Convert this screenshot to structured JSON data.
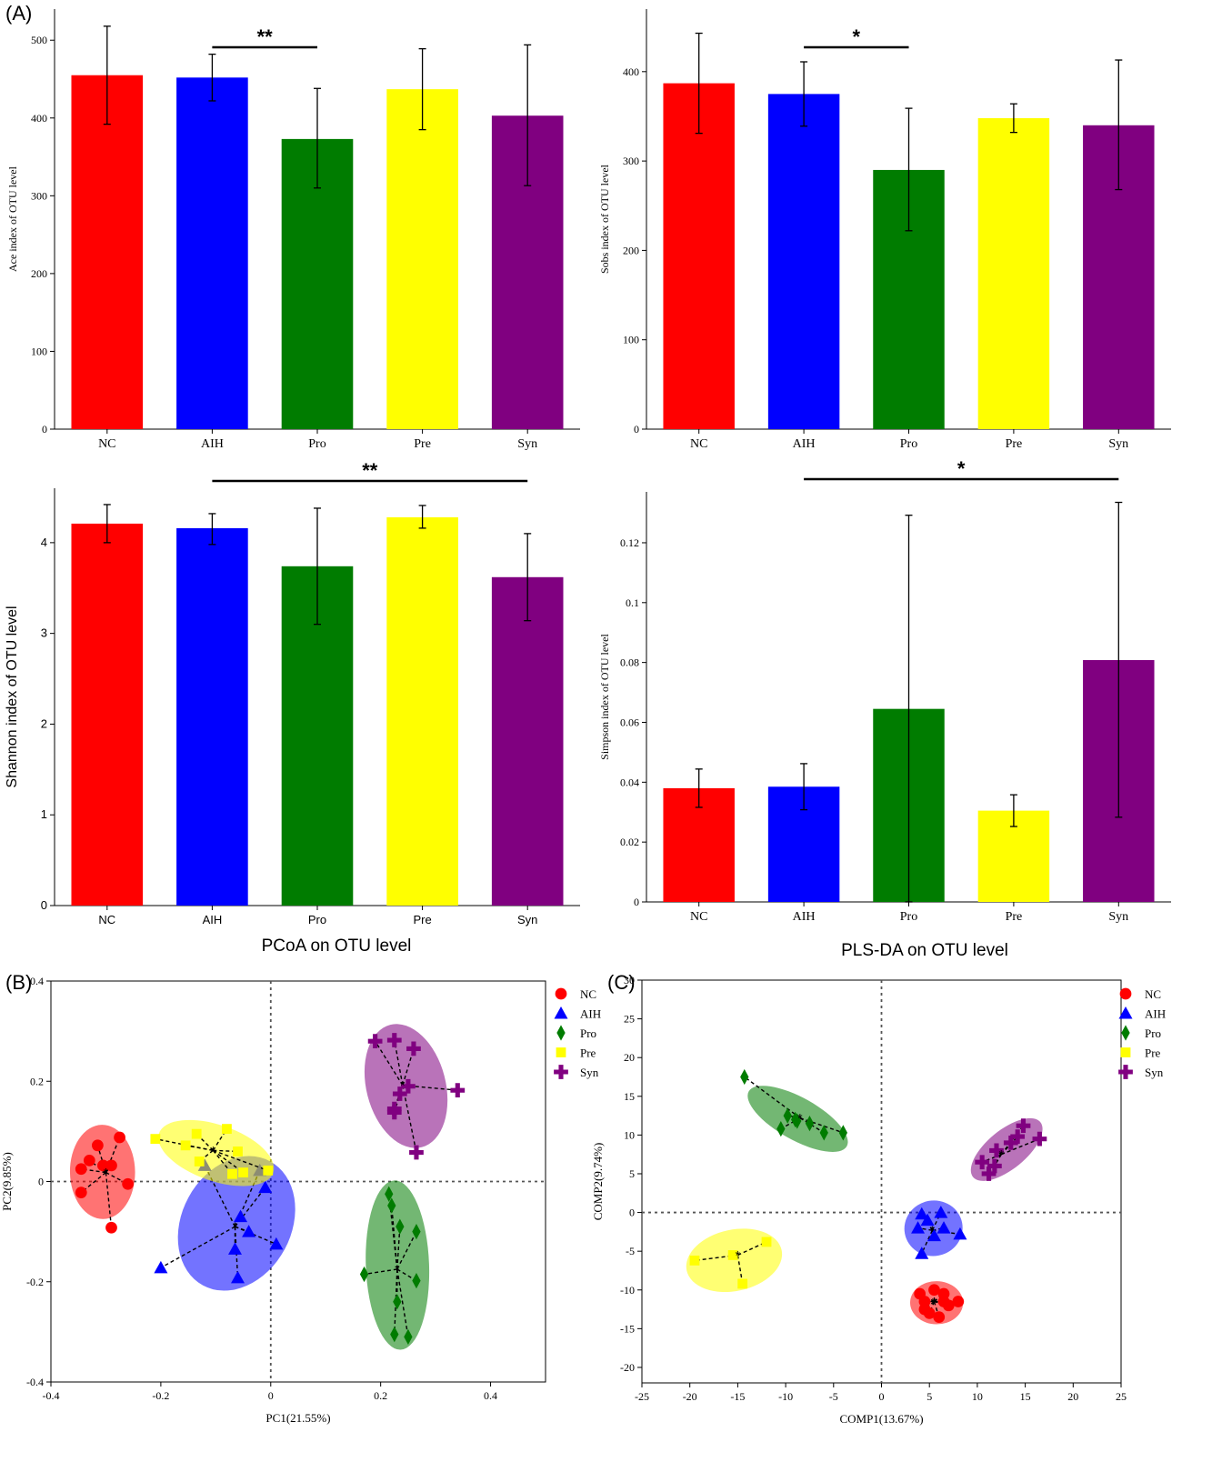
{
  "panel_labels": {
    "a": "(A)",
    "b": "(B)",
    "c": "(C)"
  },
  "group_colors": {
    "NC": "#ff0000",
    "AIH": "#0000ff",
    "Pro": "#007c00",
    "Pre": "#ffff00",
    "Syn": "#800080"
  },
  "chart_data": [
    {
      "id": "ace",
      "type": "bar",
      "categories": [
        "NC",
        "AIH",
        "Pro",
        "Pre",
        "Syn"
      ],
      "values": [
        455,
        452,
        373,
        437,
        403
      ],
      "err_low": [
        392,
        422,
        310,
        385,
        313
      ],
      "err_high": [
        518,
        482,
        438,
        489,
        494
      ],
      "ylabel": "Ace index of OTU level",
      "ylim": [
        0,
        540
      ],
      "yticks": [
        0,
        100,
        200,
        300,
        400,
        500
      ],
      "significance": {
        "from": "AIH",
        "to": "Pro",
        "label": "**"
      }
    },
    {
      "id": "sobs",
      "type": "bar",
      "categories": [
        "NC",
        "AIH",
        "Pro",
        "Pre",
        "Syn"
      ],
      "values": [
        387,
        375,
        290,
        348,
        340
      ],
      "err_low": [
        331,
        339,
        222,
        332,
        268
      ],
      "err_high": [
        443,
        411,
        359,
        364,
        413
      ],
      "ylabel": "Sobs index of OTU level",
      "ylim": [
        0,
        470
      ],
      "yticks": [
        0,
        100,
        200,
        300,
        400
      ],
      "significance": {
        "from": "AIH",
        "to": "Pro",
        "label": "*"
      }
    },
    {
      "id": "shannon",
      "type": "bar",
      "categories": [
        "NC",
        "AIH",
        "Pro",
        "Pre",
        "Syn"
      ],
      "values": [
        4.21,
        4.16,
        3.74,
        4.28,
        3.62
      ],
      "err_low": [
        4.0,
        3.98,
        3.1,
        4.16,
        3.14
      ],
      "err_high": [
        4.42,
        4.32,
        4.38,
        4.41,
        4.1
      ],
      "ylabel": "Shannon index of OTU level",
      "ylim": [
        0,
        4.6
      ],
      "yticks": [
        0,
        1,
        2,
        3,
        4
      ],
      "significance": {
        "from": "AIH",
        "to": "Syn",
        "label": "**"
      }
    },
    {
      "id": "simpson",
      "type": "bar",
      "categories": [
        "NC",
        "AIH",
        "Pro",
        "Pre",
        "Syn"
      ],
      "values": [
        0.038,
        0.0385,
        0.0645,
        0.0305,
        0.0808
      ],
      "err_low": [
        0.0316,
        0.0308,
        0.0,
        0.0252,
        0.0283
      ],
      "err_high": [
        0.0444,
        0.0462,
        0.1292,
        0.0358,
        0.1335
      ],
      "ylabel": "Simpson index of OTU level",
      "ylim": [
        0,
        0.137
      ],
      "yticks": [
        0,
        0.02,
        0.04,
        0.06,
        0.08,
        0.1,
        0.12
      ],
      "significance": {
        "from": "AIH",
        "to": "Syn",
        "label": "*"
      }
    },
    {
      "id": "pcoa",
      "type": "scatter",
      "title": "PCoA on OTU level",
      "xlabel": "PC1(21.55%)",
      "ylabel": "PC2(9.85%)",
      "xlim": [
        -0.4,
        0.5
      ],
      "ylim": [
        -0.4,
        0.4
      ],
      "xticks": [
        -0.4,
        -0.2,
        0,
        0.2,
        0.4
      ],
      "yticks": [
        -0.4,
        -0.2,
        0,
        0.2,
        0.4
      ],
      "legend": "right",
      "series": [
        {
          "name": "NC",
          "marker": "circle",
          "centroid": [
            -0.3,
            0.018
          ],
          "points": [
            [
              -0.33,
              0.042
            ],
            [
              -0.345,
              0.025
            ],
            [
              -0.315,
              0.072
            ],
            [
              -0.305,
              0.032
            ],
            [
              -0.29,
              0.032
            ],
            [
              -0.275,
              0.088
            ],
            [
              -0.26,
              -0.005
            ],
            [
              -0.345,
              -0.022
            ],
            [
              -0.29,
              -0.092
            ]
          ]
        },
        {
          "name": "AIH",
          "marker": "triangle",
          "centroid": [
            -0.065,
            -0.09
          ],
          "points": [
            [
              -0.2,
              -0.172
            ],
            [
              -0.12,
              0.032
            ],
            [
              -0.06,
              -0.192
            ],
            [
              -0.065,
              -0.135
            ],
            [
              -0.04,
              -0.1
            ],
            [
              -0.01,
              -0.012
            ],
            [
              -0.02,
              0.022
            ],
            [
              0.01,
              -0.125
            ],
            [
              -0.055,
              -0.07
            ]
          ]
        },
        {
          "name": "Pro",
          "marker": "diamond",
          "centroid": [
            0.23,
            -0.175
          ],
          "points": [
            [
              0.17,
              -0.185
            ],
            [
              0.215,
              -0.025
            ],
            [
              0.22,
              -0.048
            ],
            [
              0.265,
              -0.1
            ],
            [
              0.265,
              -0.198
            ],
            [
              0.23,
              -0.24
            ],
            [
              0.225,
              -0.305
            ],
            [
              0.25,
              -0.31
            ],
            [
              0.235,
              -0.09
            ]
          ]
        },
        {
          "name": "Pre",
          "marker": "square",
          "centroid": [
            -0.105,
            0.062
          ],
          "points": [
            [
              -0.21,
              0.085
            ],
            [
              -0.155,
              0.072
            ],
            [
              -0.135,
              0.095
            ],
            [
              -0.08,
              0.105
            ],
            [
              -0.06,
              0.06
            ],
            [
              -0.05,
              0.018
            ],
            [
              -0.005,
              0.022
            ],
            [
              -0.13,
              0.04
            ],
            [
              -0.07,
              0.015
            ]
          ]
        },
        {
          "name": "Syn",
          "marker": "plus",
          "centroid": [
            0.24,
            0.192
          ],
          "points": [
            [
              0.19,
              0.28
            ],
            [
              0.225,
              0.282
            ],
            [
              0.26,
              0.265
            ],
            [
              0.25,
              0.19
            ],
            [
              0.235,
              0.175
            ],
            [
              0.225,
              0.138
            ],
            [
              0.225,
              0.145
            ],
            [
              0.265,
              0.058
            ],
            [
              0.34,
              0.182
            ]
          ]
        }
      ]
    },
    {
      "id": "plsda",
      "type": "scatter",
      "title": "PLS-DA on OTU level",
      "xlabel": "COMP1(13.67%)",
      "ylabel": "COMP2(9.74%)",
      "xlim": [
        -25,
        25
      ],
      "ylim": [
        -22,
        30
      ],
      "xticks": [
        -25,
        -20,
        -15,
        -10,
        -5,
        0,
        5,
        10,
        15,
        20,
        25
      ],
      "yticks": [
        -20,
        -15,
        -10,
        -5,
        0,
        5,
        10,
        15,
        20,
        25,
        30
      ],
      "legend": "right",
      "series": [
        {
          "name": "NC",
          "marker": "circle",
          "centroid": [
            5.5,
            -11.5
          ],
          "points": [
            [
              4.0,
              -10.5
            ],
            [
              4.5,
              -12.5
            ],
            [
              5.5,
              -10.0
            ],
            [
              6.5,
              -10.5
            ],
            [
              7.0,
              -12.0
            ],
            [
              8.0,
              -11.5
            ],
            [
              5.0,
              -13.0
            ],
            [
              6.0,
              -13.5
            ],
            [
              4.5,
              -11.5
            ],
            [
              6.5,
              -11.5
            ]
          ]
        },
        {
          "name": "AIH",
          "marker": "triangle",
          "centroid": [
            5.3,
            -2.3
          ],
          "points": [
            [
              4.2,
              -0.2
            ],
            [
              6.2,
              0.0
            ],
            [
              8.2,
              -2.8
            ],
            [
              3.8,
              -2.0
            ],
            [
              4.2,
              -5.3
            ],
            [
              6.5,
              -2.0
            ],
            [
              5.5,
              -3.0
            ],
            [
              4.8,
              -1.0
            ]
          ]
        },
        {
          "name": "Pro",
          "marker": "diamond",
          "centroid": [
            -8.5,
            12.2
          ],
          "points": [
            [
              -14.3,
              17.5
            ],
            [
              -10.5,
              10.8
            ],
            [
              -9.8,
              12.5
            ],
            [
              -8.8,
              11.8
            ],
            [
              -7.5,
              11.5
            ],
            [
              -6.0,
              10.3
            ],
            [
              -4.0,
              10.3
            ],
            [
              -9.0,
              12.0
            ]
          ]
        },
        {
          "name": "Pre",
          "marker": "square",
          "centroid": [
            -15.0,
            -5.5
          ],
          "points": [
            [
              -19.5,
              -6.2
            ],
            [
              -14.5,
              -9.2
            ],
            [
              -12.0,
              -3.8
            ],
            [
              -15.5,
              -5.5
            ]
          ]
        },
        {
          "name": "Syn",
          "marker": "plus",
          "centroid": [
            12.5,
            7.5
          ],
          "points": [
            [
              10.5,
              6.5
            ],
            [
              11.2,
              5.0
            ],
            [
              12.0,
              8.0
            ],
            [
              13.5,
              9.0
            ],
            [
              14.2,
              9.8
            ],
            [
              14.8,
              11.2
            ],
            [
              16.5,
              9.5
            ],
            [
              11.8,
              6.0
            ]
          ]
        }
      ]
    }
  ]
}
